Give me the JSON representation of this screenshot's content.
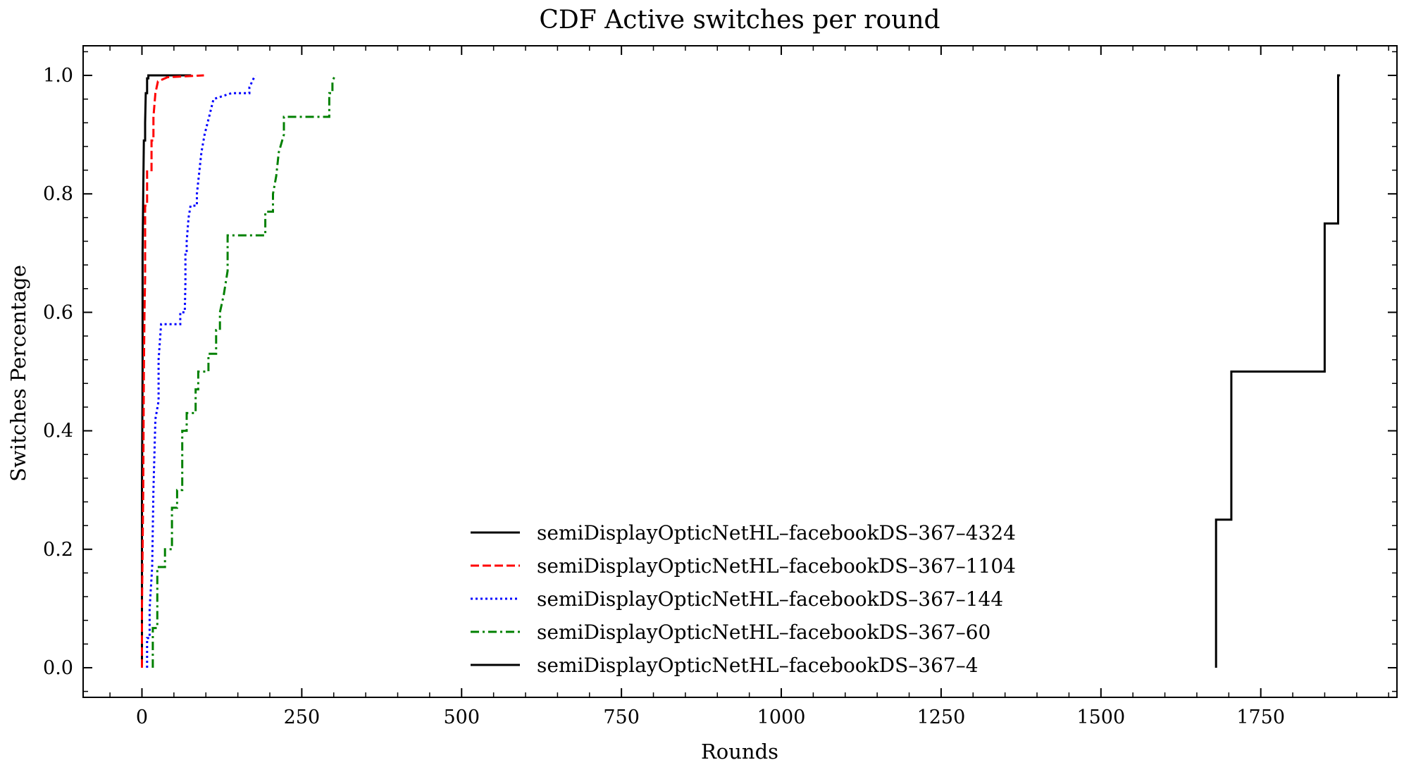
{
  "chart_data": {
    "type": "line",
    "step": true,
    "title": "CDF Active switches per round",
    "xlabel": "Rounds",
    "ylabel": "Switches Percentage",
    "xlim": [
      -92,
      1963
    ],
    "ylim": [
      -0.05,
      1.05
    ],
    "xticks": [
      0,
      250,
      500,
      750,
      1000,
      1250,
      1500,
      1750
    ],
    "xtick_labels": [
      "0",
      "250",
      "500",
      "750",
      "1000",
      "1250",
      "1500",
      "1750"
    ],
    "yticks": [
      0.0,
      0.2,
      0.4,
      0.6,
      0.8,
      1.0
    ],
    "ytick_labels": [
      "0.0",
      "0.2",
      "0.4",
      "0.6",
      "0.8",
      "1.0"
    ],
    "grid": false,
    "legend_position": "bottom-center",
    "series": [
      {
        "name": "semiDisplayOpticNetHL–facebookDS–367–4324",
        "color": "#000000",
        "dash": "solid",
        "points": [
          [
            0,
            0
          ],
          [
            0,
            0.3
          ],
          [
            1,
            0.5
          ],
          [
            1,
            0.7
          ],
          [
            2,
            0.8
          ],
          [
            3,
            0.89
          ],
          [
            5,
            0.89
          ],
          [
            5,
            0.92
          ],
          [
            6,
            0.97
          ],
          [
            8,
            0.97
          ],
          [
            8,
            0.995
          ],
          [
            10,
            0.995
          ],
          [
            10,
            1.0
          ],
          [
            77,
            1.0
          ]
        ]
      },
      {
        "name": "semiDisplayOpticNetHL–facebookDS–367–1104",
        "color": "#ff0000",
        "dash": "dashed",
        "points": [
          [
            0,
            0
          ],
          [
            0,
            0.1
          ],
          [
            2,
            0.3
          ],
          [
            3,
            0.5
          ],
          [
            4,
            0.6
          ],
          [
            5,
            0.66
          ],
          [
            5,
            0.78
          ],
          [
            8,
            0.78
          ],
          [
            8,
            0.84
          ],
          [
            15,
            0.84
          ],
          [
            15,
            0.89
          ],
          [
            18,
            0.89
          ],
          [
            18,
            0.93
          ],
          [
            21,
            0.97
          ],
          [
            25,
            0.99
          ],
          [
            40,
            0.997
          ],
          [
            97,
            1.0
          ]
        ]
      },
      {
        "name": "semiDisplayOpticNetHL–facebookDS–367–144",
        "color": "#0000ff",
        "dash": "dotted",
        "points": [
          [
            8,
            0
          ],
          [
            8,
            0.05
          ],
          [
            12,
            0.05
          ],
          [
            12,
            0.1
          ],
          [
            16,
            0.17
          ],
          [
            18,
            0.3
          ],
          [
            21,
            0.42
          ],
          [
            26,
            0.45
          ],
          [
            26,
            0.52
          ],
          [
            30,
            0.58
          ],
          [
            60,
            0.58
          ],
          [
            60,
            0.6
          ],
          [
            67,
            0.6
          ],
          [
            68,
            0.65
          ],
          [
            68,
            0.7
          ],
          [
            70,
            0.7
          ],
          [
            70,
            0.72
          ],
          [
            73,
            0.76
          ],
          [
            76,
            0.78
          ],
          [
            86,
            0.78
          ],
          [
            86,
            0.8
          ],
          [
            93,
            0.87
          ],
          [
            98,
            0.9
          ],
          [
            105,
            0.93
          ],
          [
            112,
            0.96
          ],
          [
            140,
            0.97
          ],
          [
            168,
            0.97
          ],
          [
            168,
            0.98
          ],
          [
            177,
            1.0
          ]
        ]
      },
      {
        "name": "semiDisplayOpticNetHL–facebookDS–367–60",
        "color": "#008000",
        "dash": "dashdot",
        "points": [
          [
            17,
            0
          ],
          [
            17,
            0.067
          ],
          [
            24,
            0.067
          ],
          [
            24,
            0.17
          ],
          [
            36,
            0.17
          ],
          [
            36,
            0.2
          ],
          [
            47,
            0.2
          ],
          [
            47,
            0.27
          ],
          [
            55,
            0.27
          ],
          [
            55,
            0.3
          ],
          [
            63,
            0.3
          ],
          [
            63,
            0.4
          ],
          [
            70,
            0.4
          ],
          [
            70,
            0.43
          ],
          [
            84,
            0.43
          ],
          [
            84,
            0.47
          ],
          [
            88,
            0.47
          ],
          [
            88,
            0.5
          ],
          [
            104,
            0.5
          ],
          [
            104,
            0.53
          ],
          [
            116,
            0.53
          ],
          [
            116,
            0.57
          ],
          [
            122,
            0.57
          ],
          [
            122,
            0.6
          ],
          [
            128,
            0.63
          ],
          [
            134,
            0.67
          ],
          [
            134,
            0.73
          ],
          [
            193,
            0.73
          ],
          [
            193,
            0.77
          ],
          [
            205,
            0.77
          ],
          [
            205,
            0.8
          ],
          [
            210,
            0.83
          ],
          [
            214,
            0.87
          ],
          [
            222,
            0.9
          ],
          [
            222,
            0.93
          ],
          [
            293,
            0.93
          ],
          [
            293,
            0.97
          ],
          [
            298,
            0.97
          ],
          [
            298,
            0.99
          ],
          [
            302,
            1.0
          ]
        ]
      },
      {
        "name": "semiDisplayOpticNetHL–facebookDS–367–4",
        "color": "#000000",
        "dash": "solid",
        "points": [
          [
            1680,
            0
          ],
          [
            1680,
            0.25
          ],
          [
            1704,
            0.25
          ],
          [
            1704,
            0.5
          ],
          [
            1850,
            0.5
          ],
          [
            1850,
            0.75
          ],
          [
            1871,
            0.75
          ],
          [
            1871,
            1.0
          ],
          [
            1874,
            1.0
          ]
        ]
      }
    ]
  }
}
